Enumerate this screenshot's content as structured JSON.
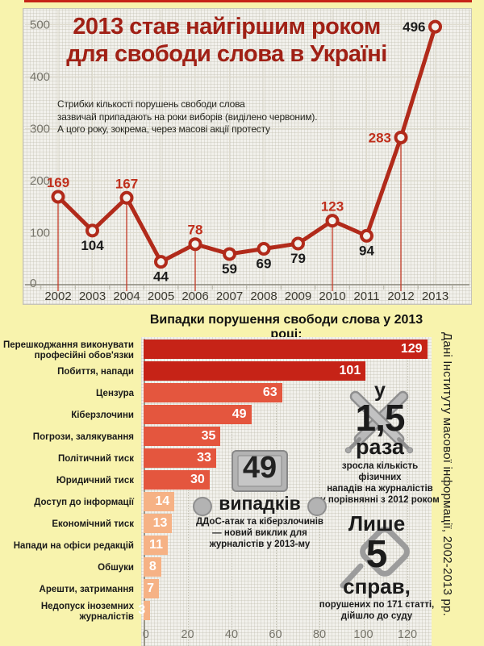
{
  "ui": {
    "line_title_lines": [
      "2013 став найгіршим роком",
      "для свободи слова в Україні"
    ],
    "line_subtitle_lines": [
      "Стрибки кількості порушень свободи слова",
      "зазвичай припадають на роки виборів (виділено червоним).",
      "А цого року, зокрема, через масові акції протесту"
    ],
    "bar_title": "Випадки порушення свободи слова у 2013 році:"
  },
  "chart_data": [
    {
      "type": "line",
      "title": "2013 став найгіршим роком для свободи слова в Україні",
      "annotation": "Стрибки кількості порушень свободи слова зазвичай припадають на роки виборів (виділено червоним). А цого року, зокрема, через масові акції протесту",
      "x": [
        2002,
        2003,
        2004,
        2005,
        2006,
        2007,
        2008,
        2009,
        2010,
        2011,
        2012,
        2013
      ],
      "values": [
        169,
        104,
        167,
        44,
        78,
        59,
        69,
        79,
        123,
        94,
        283,
        496
      ],
      "highlighted_years": [
        2002,
        2004,
        2006,
        2010,
        2012
      ],
      "y_ticks": [
        0,
        100,
        200,
        300,
        400,
        500
      ],
      "ylim": [
        0,
        520
      ],
      "grid": true,
      "line_color": "#b12a1a",
      "point_fill": "#f2f1ec",
      "highlight_label_color": "#c0301d",
      "label_color": "#1b1b1b"
    },
    {
      "type": "bar",
      "orientation": "horizontal",
      "title": "Випадки порушення свободи слова у 2013 році:",
      "categories": [
        "Перешкоджання виконувати професійні обов'язки",
        "Побиття, напади",
        "Цензура",
        "Кіберзлочини",
        "Погрози, залякування",
        "Політичний тиск",
        "Юридичний тиск",
        "Доступ до інформації",
        "Економічний тиск",
        "Напади на офіси редакцій",
        "Обшуки",
        "Арешти, затримання",
        "Недопуск іноземних журналістів"
      ],
      "values": [
        129,
        101,
        63,
        49,
        35,
        33,
        30,
        14,
        13,
        11,
        8,
        7,
        3
      ],
      "color_tiers": [
        "dark",
        "dark",
        "mid",
        "mid",
        "mid",
        "mid",
        "mid",
        "light",
        "light",
        "light",
        "light",
        "light",
        "light"
      ],
      "tier_colors": {
        "dark": "#c62317",
        "mid": "#e4563e",
        "light": "#f6b285"
      },
      "value_label_color": "#ffffff",
      "x_ticks": [
        0,
        20,
        40,
        60,
        80,
        100,
        120
      ],
      "xlim": [
        0,
        132
      ],
      "grid": true
    }
  ],
  "annotations": {
    "attacks": {
      "prefix": "у",
      "number": "1,5",
      "suffix": "раза",
      "lines": [
        "зросла кількість фізичних",
        "нападів на журналістів",
        "у порівнянні з 2012 роком"
      ]
    },
    "cyber": {
      "number": "49",
      "unit": "випадків",
      "lines": [
        "ДДоС-атак та кіберзлочинів",
        "— новий виклик для",
        "журналістів у 2013-му"
      ]
    },
    "court": {
      "prefix": "Лише",
      "number": "5",
      "suffix": "справ,",
      "lines": [
        "порушених по 171 статті,",
        "дійшло до суду"
      ]
    }
  },
  "source_note": "Дані Інституту масової інформації, 2002-2013 рр."
}
